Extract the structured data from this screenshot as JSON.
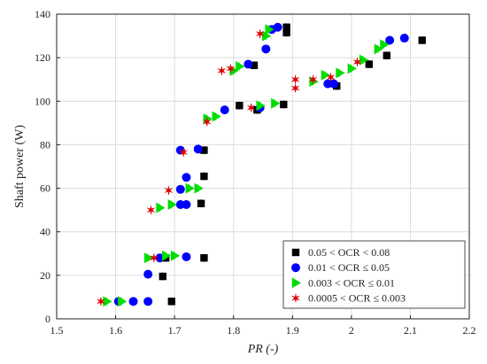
{
  "chart_data": {
    "type": "scatter",
    "xlabel": "PR (-)",
    "ylabel": "Shaft power (W)",
    "xlim": [
      1.5,
      2.2
    ],
    "ylim": [
      0,
      140
    ],
    "xticks": [
      "1.5",
      "1.6",
      "1.7",
      "1.8",
      "1.9",
      "2",
      "2.1",
      "2.2"
    ],
    "yticks": [
      "0",
      "20",
      "40",
      "60",
      "80",
      "100",
      "120",
      "140"
    ],
    "grid": true,
    "legend_position": "bottom-right",
    "series": [
      {
        "name": "0.05 < OCR < 0.08",
        "marker": "square",
        "color": "#000000",
        "points": [
          [
            1.695,
            8
          ],
          [
            1.68,
            19.5
          ],
          [
            1.75,
            28
          ],
          [
            1.685,
            28
          ],
          [
            1.745,
            53
          ],
          [
            1.75,
            65.5
          ],
          [
            1.75,
            77.5
          ],
          [
            1.81,
            98
          ],
          [
            1.835,
            116.5
          ],
          [
            1.84,
            96
          ],
          [
            1.885,
            98.5
          ],
          [
            1.89,
            134
          ],
          [
            1.89,
            131.5
          ],
          [
            1.975,
            107
          ],
          [
            2.03,
            117
          ],
          [
            2.06,
            121
          ],
          [
            2.12,
            128
          ]
        ]
      },
      {
        "name": "0.01 < OCR ≤ 0.05",
        "marker": "circle",
        "color": "#0000ff",
        "points": [
          [
            1.605,
            8
          ],
          [
            1.63,
            8
          ],
          [
            1.655,
            8
          ],
          [
            1.655,
            20.5
          ],
          [
            1.675,
            28
          ],
          [
            1.72,
            28.5
          ],
          [
            1.71,
            52.5
          ],
          [
            1.72,
            52.5
          ],
          [
            1.71,
            59.5
          ],
          [
            1.72,
            65
          ],
          [
            1.71,
            77.5
          ],
          [
            1.74,
            78
          ],
          [
            1.785,
            96
          ],
          [
            1.825,
            117
          ],
          [
            1.845,
            97
          ],
          [
            1.855,
            124
          ],
          [
            1.865,
            133
          ],
          [
            1.875,
            134
          ],
          [
            1.96,
            108
          ],
          [
            1.97,
            108
          ],
          [
            2.065,
            128
          ],
          [
            2.09,
            129
          ]
        ]
      },
      {
        "name": "0.003 < OCR ≤ 0.01",
        "marker": "triangle-right",
        "color": "#00dd00",
        "points": [
          [
            1.585,
            8
          ],
          [
            1.61,
            8
          ],
          [
            1.655,
            28
          ],
          [
            1.685,
            29
          ],
          [
            1.7,
            29
          ],
          [
            1.675,
            51
          ],
          [
            1.695,
            52.5
          ],
          [
            1.725,
            60
          ],
          [
            1.74,
            60
          ],
          [
            1.755,
            92
          ],
          [
            1.77,
            93
          ],
          [
            1.81,
            116
          ],
          [
            1.8,
            114
          ],
          [
            1.855,
            130
          ],
          [
            1.86,
            133
          ],
          [
            1.845,
            98
          ],
          [
            1.87,
            99
          ],
          [
            1.935,
            109
          ],
          [
            1.955,
            112
          ],
          [
            1.98,
            113
          ],
          [
            2.0,
            115
          ],
          [
            2.02,
            119
          ],
          [
            2.045,
            124
          ],
          [
            2.055,
            126
          ]
        ]
      },
      {
        "name": "0.0005 < OCR ≤ 0.003",
        "marker": "star",
        "color": "#dd0000",
        "points": [
          [
            1.575,
            8
          ],
          [
            1.665,
            28
          ],
          [
            1.66,
            50
          ],
          [
            1.69,
            59
          ],
          [
            1.715,
            76.5
          ],
          [
            1.755,
            90.5
          ],
          [
            1.78,
            114
          ],
          [
            1.795,
            115
          ],
          [
            1.83,
            97
          ],
          [
            1.845,
            131
          ],
          [
            1.905,
            106
          ],
          [
            1.905,
            110
          ],
          [
            1.935,
            110
          ],
          [
            1.965,
            111
          ],
          [
            2.01,
            118
          ]
        ]
      }
    ]
  }
}
